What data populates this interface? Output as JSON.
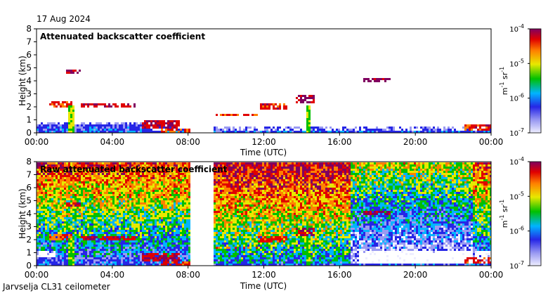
{
  "date": "17 Aug 2024",
  "footer": "Jarvselja CL31 ceilometer",
  "colors": {
    "scale": [
      "#eeeeff",
      "#9a9af2",
      "#2626e6",
      "#00b4ff",
      "#00c000",
      "#e8e800",
      "#ff8000",
      "#e00000",
      "#800060"
    ],
    "missing": "#ffffff"
  },
  "chart_data": [
    {
      "type": "heatmap",
      "title": "Attenuated backscatter coefficient",
      "xlabel": "Time (UTC)",
      "ylabel": "Height (km)",
      "x_ticks": [
        "00:00",
        "04:00",
        "08:00",
        "12:00",
        "16:00",
        "20:00",
        "00:00"
      ],
      "y_ticks": [
        "0",
        "1",
        "2",
        "3",
        "4",
        "5",
        "6",
        "7",
        "8"
      ],
      "xlim_hours": [
        0,
        24
      ],
      "ylim_km": [
        0,
        8
      ],
      "data_gap_hours": [
        8.1,
        9.3
      ],
      "colorbar": {
        "label_base": "m",
        "label_exp1": "-1",
        "label_mid": " sr",
        "label_exp2": "-1",
        "ticks": [
          {
            "base": "10",
            "exp": "-7"
          },
          {
            "base": "10",
            "exp": "-6"
          },
          {
            "base": "10",
            "exp": "-5"
          },
          {
            "base": "10",
            "exp": "-4"
          }
        ],
        "range_log10": [
          -7,
          -4
        ]
      }
    },
    {
      "type": "heatmap",
      "title": "Raw attenuated backscatter coefficient",
      "xlabel": "Time (UTC)",
      "ylabel": "Height (km)",
      "x_ticks": [
        "00:00",
        "04:00",
        "08:00",
        "12:00",
        "16:00",
        "20:00",
        "00:00"
      ],
      "y_ticks": [
        "0",
        "1",
        "2",
        "3",
        "4",
        "5",
        "6",
        "7",
        "8"
      ],
      "xlim_hours": [
        0,
        24
      ],
      "ylim_km": [
        0,
        8
      ],
      "data_gap_hours": [
        8.1,
        9.3
      ],
      "colorbar": {
        "label_base": "m",
        "label_exp1": "-1",
        "label_mid": " sr",
        "label_exp2": "-1",
        "ticks": [
          {
            "base": "10",
            "exp": "-7"
          },
          {
            "base": "10",
            "exp": "-6"
          },
          {
            "base": "10",
            "exp": "-5"
          },
          {
            "base": "10",
            "exp": "-4"
          }
        ],
        "range_log10": [
          -7,
          -4
        ]
      }
    }
  ]
}
